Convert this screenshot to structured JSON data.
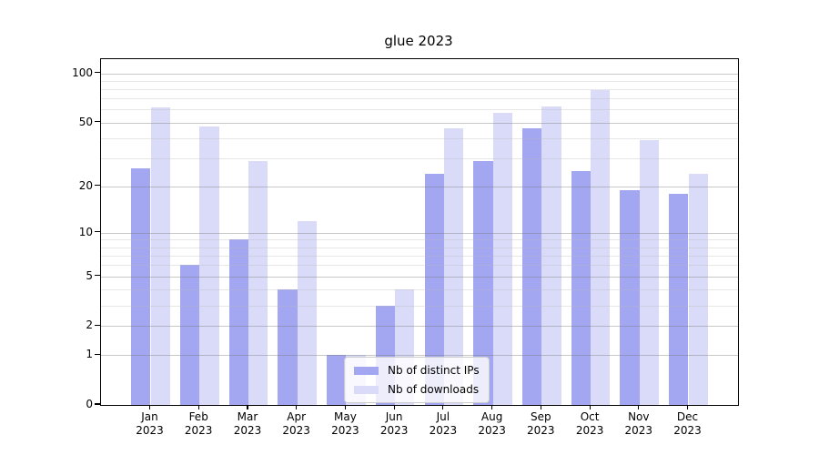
{
  "chart_data": {
    "type": "bar",
    "title": "glue 2023",
    "categories": [
      "Jan",
      "Feb",
      "Mar",
      "Apr",
      "May",
      "Jun",
      "Jul",
      "Aug",
      "Sep",
      "Oct",
      "Nov",
      "Dec"
    ],
    "x_tick_year": "2023",
    "series": [
      {
        "name": "Nb of distinct IPs",
        "color": "#a3a6f1",
        "values": [
          26,
          6,
          9,
          4,
          1,
          3,
          24,
          29,
          46,
          25,
          19,
          18
        ]
      },
      {
        "name": "Nb of downloads",
        "color": "#d9dbf9",
        "values": [
          62,
          47,
          29,
          12,
          1,
          4,
          46,
          57,
          63,
          79,
          39,
          24
        ]
      }
    ],
    "yscale": "log10(1+x)",
    "ylim": [
      0,
      122
    ],
    "y_ticks": [
      0,
      1,
      2,
      5,
      10,
      20,
      50,
      100
    ],
    "y_minor_gridlines": [
      3,
      4,
      6,
      7,
      8,
      9,
      30,
      40,
      60,
      70,
      80,
      90
    ],
    "grid": true,
    "legend_position": "lower center",
    "colors": {
      "distinct_ips": "#a3a6f1",
      "downloads": "#d9dbf9",
      "major_grid": "#cccccc",
      "minor_grid": "#ebebeb"
    }
  }
}
